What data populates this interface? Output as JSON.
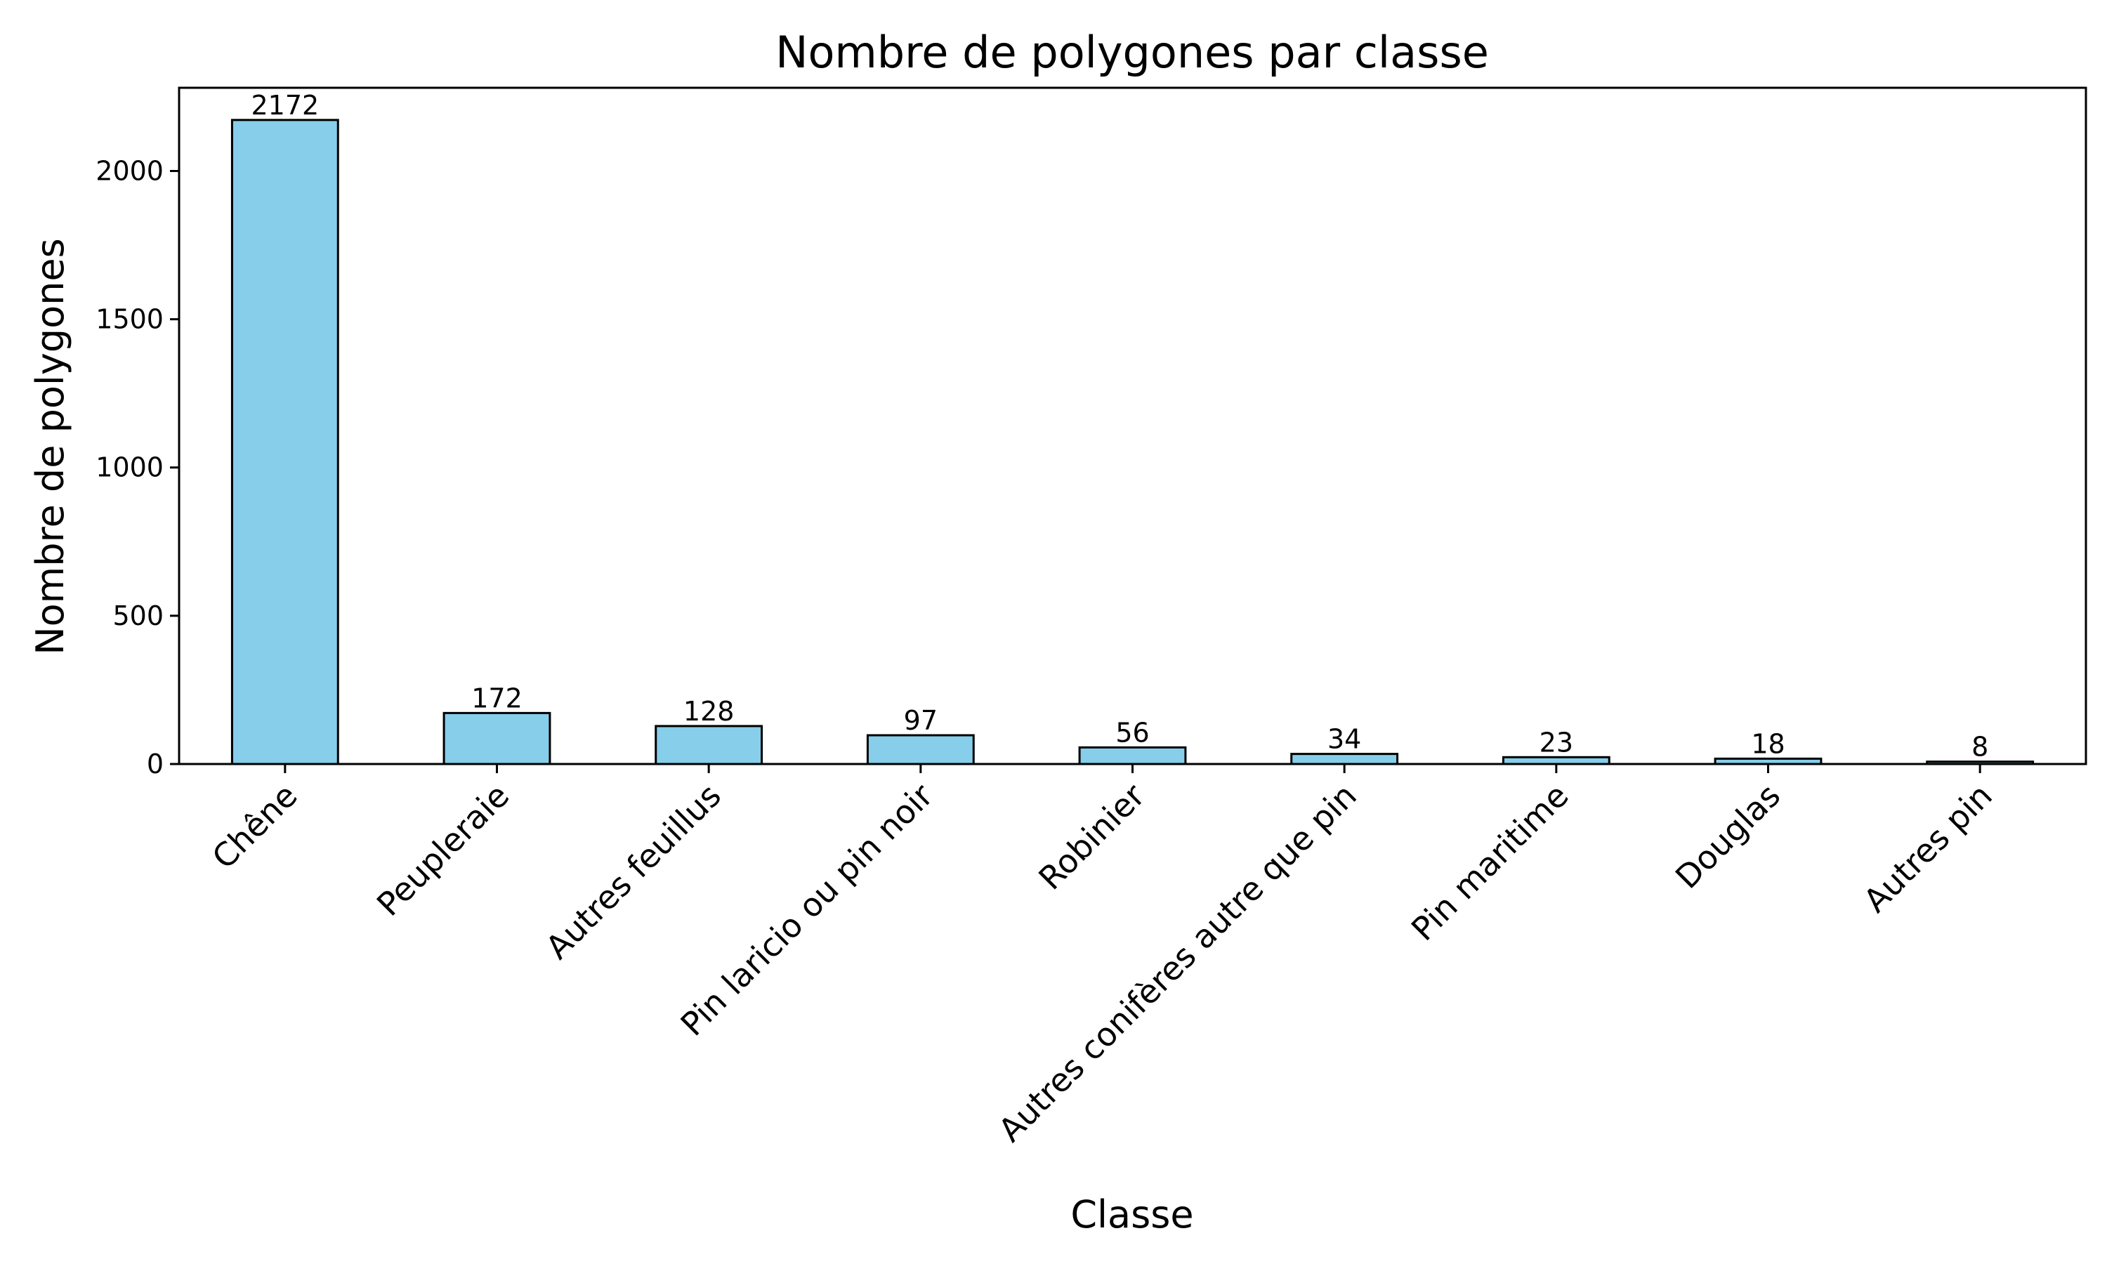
{
  "chart_data": {
    "type": "bar",
    "title": "Nombre de polygones par classe",
    "xlabel": "Classe",
    "ylabel": "Nombre de polygones",
    "categories": [
      "Chêne",
      "Peupleraie",
      "Autres feuillus",
      "Pin laricio ou pin noir",
      "Robinier",
      "Autres conifères autre que pin",
      "Pin maritime",
      "Douglas",
      "Autres pin"
    ],
    "values": [
      2172,
      172,
      128,
      97,
      56,
      34,
      23,
      18,
      8
    ],
    "data_labels": [
      "2172",
      "172",
      "128",
      "97",
      "56",
      "34",
      "23",
      "18",
      "8"
    ],
    "yticks": [
      0,
      500,
      1000,
      1500,
      2000
    ],
    "ytick_labels": [
      "0",
      "500",
      "1000",
      "1500",
      "2000"
    ],
    "ylim": [
      0,
      2280.6
    ],
    "grid": false,
    "legend": "none",
    "colors": {
      "bar_fill": "#87ceeb",
      "bar_edge": "#000000",
      "axes": "#000000"
    }
  }
}
